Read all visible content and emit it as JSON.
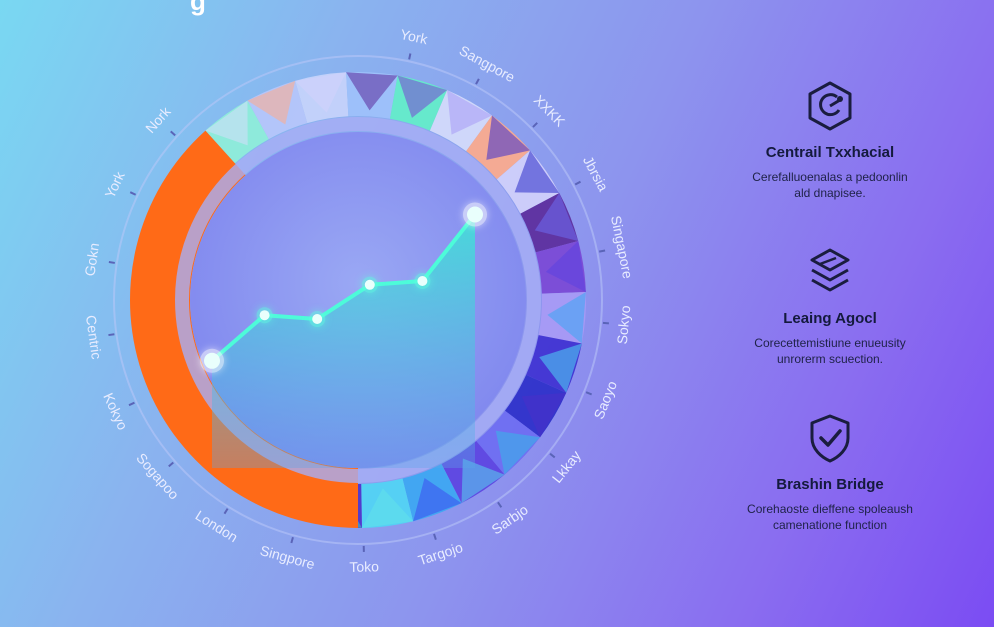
{
  "header_fragment": "g",
  "city_labels": [
    "York",
    "Sangpore",
    "XXKK",
    "Jbrsia",
    "Singapore",
    "Sokyo",
    "Saoyo",
    "Lkkay",
    "Sarbjo",
    "Targojo",
    "Toko",
    "Singpore",
    "London",
    "Sogapoo",
    "Kokyo",
    "Centric",
    "Gokn",
    "York",
    "Nork"
  ],
  "chart_data": {
    "type": "line",
    "title": "",
    "xlabel": "",
    "ylabel": "",
    "x": [
      1,
      2,
      3,
      4,
      5,
      6
    ],
    "series": [
      {
        "values": [
          18,
          42,
          40,
          58,
          60,
          95
        ]
      }
    ],
    "ylim": [
      0,
      100
    ]
  },
  "features": [
    {
      "icon": "chip-icon",
      "title": "Centrail Txxhacial",
      "desc_line1": "Cerefalluoenalas a pedoonlin",
      "desc_line2": "ald dnapisee."
    },
    {
      "icon": "layers-icon",
      "title": "Leaing Agocl",
      "desc_line1": "Corecettemistiune enueusity",
      "desc_line2": "unrorerm scuection."
    },
    {
      "icon": "shield-check-icon",
      "title": "Brashin Bridge",
      "desc_line1": "Corehaoste dieffene spoleaush",
      "desc_line2": "camenatione function"
    }
  ],
  "colors": {
    "ring_orange": "#ff6a17",
    "glow_point": "#d9ffff",
    "line": "#4dfbd9",
    "inner_disc": "#8a8ef0"
  }
}
